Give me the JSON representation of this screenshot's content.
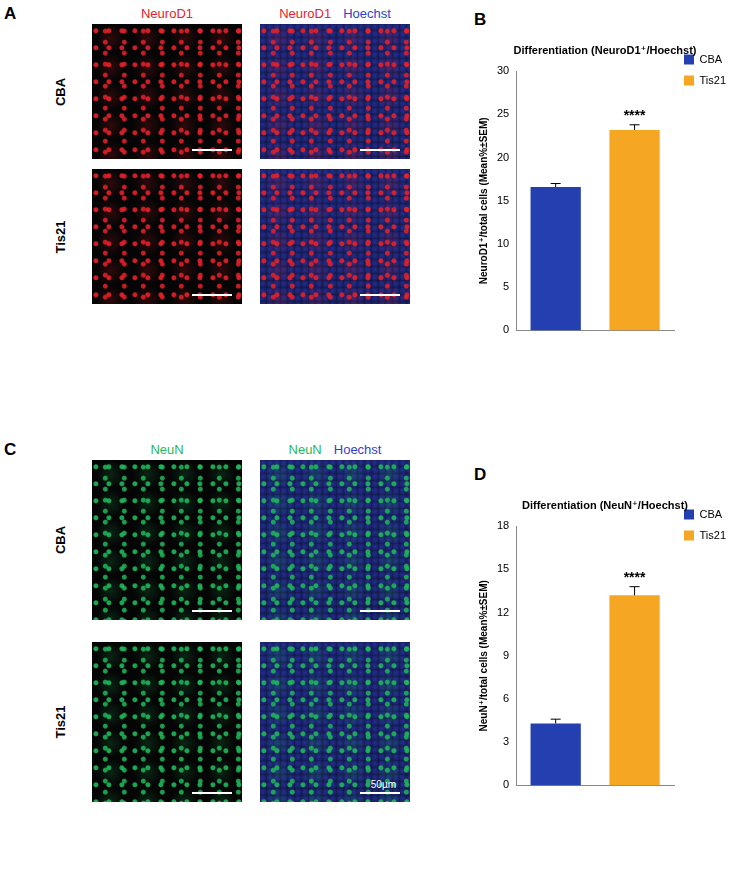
{
  "image_panels": [
    {
      "label": "A",
      "column_headers": [
        [
          {
            "text": "NeuroD1",
            "color": "#e8202a"
          }
        ],
        [
          {
            "text": "NeuroD1",
            "color": "#e8202a"
          },
          {
            "text": "Hoechst",
            "color": "#2f3fd0"
          }
        ]
      ],
      "row_labels": [
        "CBA",
        "Tis21"
      ]
    },
    {
      "label": "C",
      "column_headers": [
        [
          {
            "text": "NeuN",
            "color": "#1fb85a"
          }
        ],
        [
          {
            "text": "NeuN",
            "color": "#1fb85a"
          },
          {
            "text": "Hoechst",
            "color": "#2f3fd0"
          }
        ]
      ],
      "row_labels": [
        "CBA",
        "Tis21"
      ],
      "scale_bar_label": "50µm"
    }
  ],
  "chart_labels": [
    "B",
    "D"
  ],
  "chart_data": [
    {
      "type": "bar",
      "title": "Differentiation (NeuroD1⁺/Hoechst)",
      "y_label": "NeuroD1⁺/total cells (Mean%±SEM)",
      "categories": [
        "CBA",
        "Tis21"
      ],
      "values": [
        16.6,
        23.2
      ],
      "errors": [
        0.4,
        0.6
      ],
      "colors": [
        "#2440b0",
        "#f5a623"
      ],
      "ylim": [
        0,
        30
      ],
      "yticks": [
        0,
        5,
        10,
        15,
        20,
        25,
        30
      ],
      "grid": false,
      "legend": "right",
      "tick_labels": "y",
      "annotations": [
        {
          "category": "Tis21",
          "text": "****"
        }
      ]
    },
    {
      "type": "bar",
      "title": "Differentiation (NeuN⁺/Hoechst)",
      "y_label": "NeuN⁺/total cells (Mean%±SEM)",
      "categories": [
        "CBA",
        "Tis21"
      ],
      "values": [
        4.3,
        13.2
      ],
      "errors": [
        0.3,
        0.6
      ],
      "colors": [
        "#2440b0",
        "#f5a623"
      ],
      "ylim": [
        0,
        18
      ],
      "yticks": [
        0,
        3,
        6,
        9,
        12,
        15,
        18
      ],
      "grid": false,
      "legend": "right",
      "tick_labels": "y",
      "annotations": [
        {
          "category": "Tis21",
          "text": "****"
        }
      ]
    }
  ]
}
